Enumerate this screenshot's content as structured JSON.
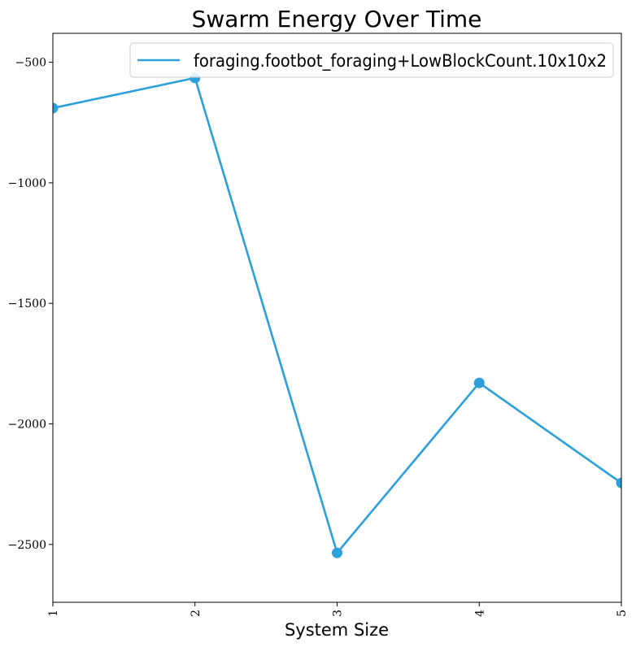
{
  "chart_data": {
    "type": "line",
    "title": "Swarm Energy Over Time",
    "xlabel": "System Size",
    "ylabel": "",
    "x": [
      1,
      2,
      3,
      4,
      5
    ],
    "x_ticks": [
      "1",
      "2",
      "3",
      "4",
      "5"
    ],
    "xlim": [
      1,
      5
    ],
    "ylim": [
      -2740,
      -380
    ],
    "y_ticks": [
      -500,
      -1000,
      -1500,
      -2000,
      -2500
    ],
    "y_tick_labels": [
      "−500",
      "−1000",
      "−1500",
      "−2000",
      "−2500"
    ],
    "series": [
      {
        "name": "foraging.footbot_foraging+LowBlockCount.10x10x2",
        "values": [
          -690,
          -565,
          -2535,
          -1830,
          -2245
        ],
        "color": "#2ca0d8"
      }
    ],
    "legend_position": "top-right",
    "grid": false
  }
}
